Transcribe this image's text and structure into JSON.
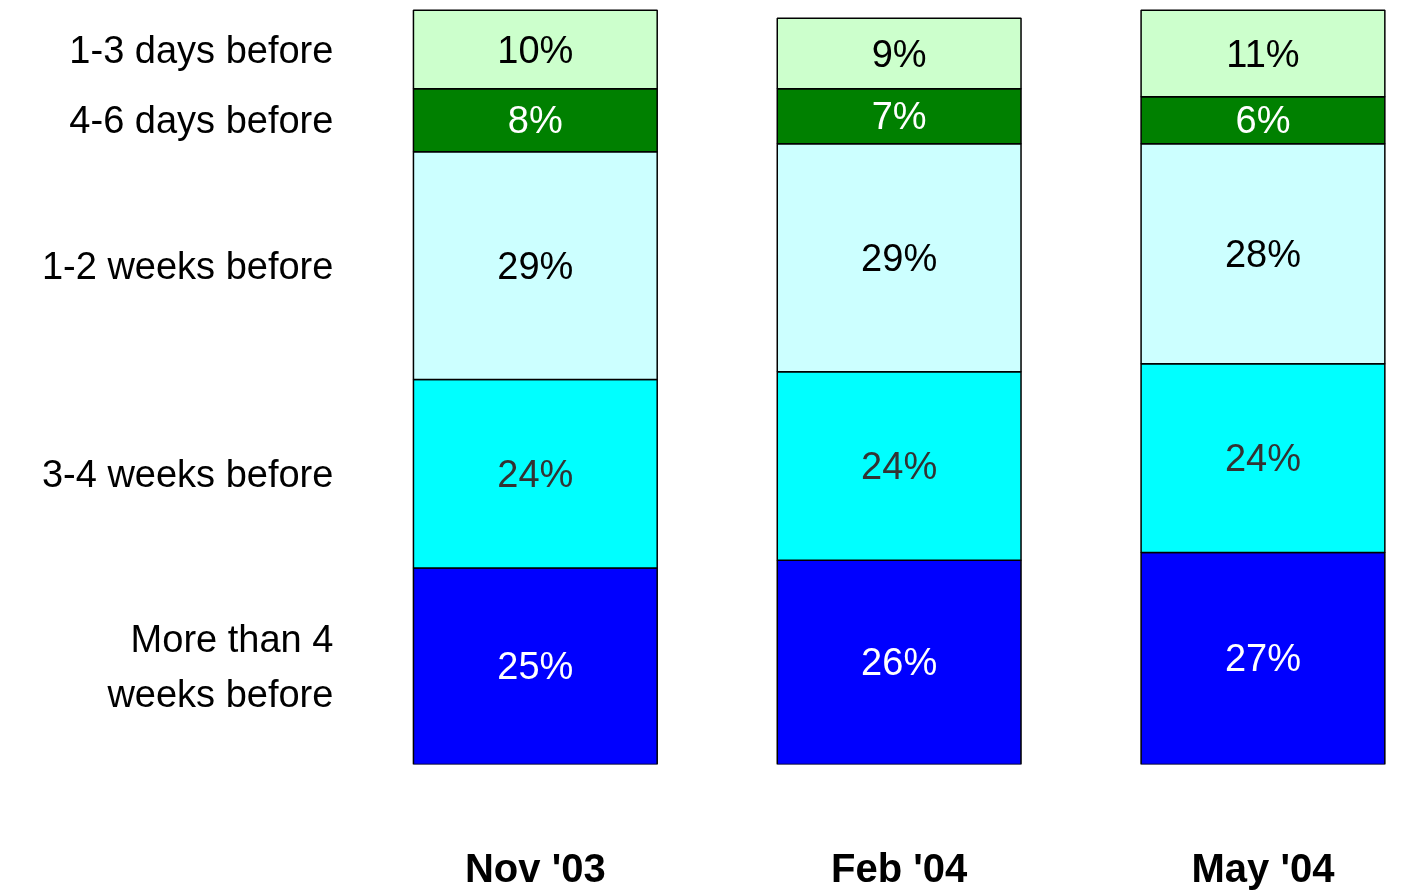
{
  "chart_data": {
    "type": "bar",
    "stacked": true,
    "legend": "left",
    "tick_labels": "x",
    "categories": [
      "Nov '03",
      "Feb '04",
      "May '04"
    ],
    "series": [
      {
        "name": "More than 4\nweeks before",
        "color": "#0000ff",
        "values": [
          25,
          26,
          27
        ],
        "value_labels": [
          "25%",
          "26%",
          "27%"
        ]
      },
      {
        "name": "3-4 weeks before",
        "color": "#00ffff",
        "values": [
          24,
          24,
          24
        ],
        "value_labels": [
          "24%",
          "24%",
          "24%"
        ]
      },
      {
        "name": "1-2 weeks before",
        "color": "#ccffff",
        "values": [
          29,
          29,
          28
        ],
        "value_labels": [
          "29%",
          "29%",
          "28%"
        ]
      },
      {
        "name": "4-6 days before",
        "color": "#008000",
        "values": [
          8,
          7,
          6
        ],
        "value_labels": [
          "8%",
          "7%",
          "6%"
        ]
      },
      {
        "name": "1-3 days before",
        "color": "#ccffcc",
        "values": [
          10,
          9,
          11
        ],
        "value_labels": [
          "10%",
          "9%",
          "11%"
        ]
      }
    ]
  }
}
